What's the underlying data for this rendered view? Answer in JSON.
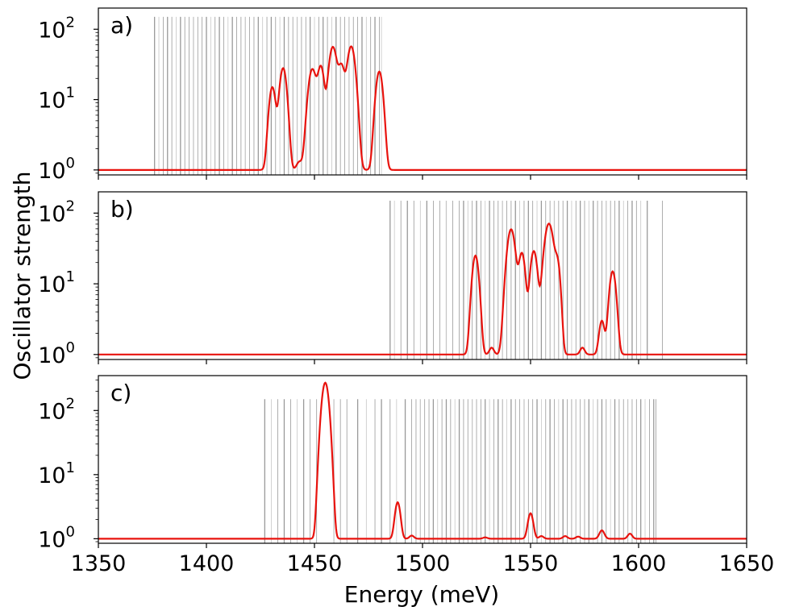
{
  "chart_data": {
    "type": "line",
    "xlabel": "Energy (meV)",
    "ylabel": "Oscillator strength",
    "xlim": [
      1350,
      1650
    ],
    "x_ticks": [
      1350,
      1400,
      1450,
      1500,
      1550,
      1600,
      1650
    ],
    "y_scale": "log",
    "y_ticks": [
      {
        "base": "10",
        "exp": "0"
      },
      {
        "base": "10",
        "exp": "1"
      },
      {
        "base": "10",
        "exp": "2"
      }
    ],
    "colors": {
      "curve": "#e8130e",
      "sticks": "#808080",
      "axes": "#000000"
    },
    "grid": false,
    "panels": [
      {
        "label": "a)",
        "ylim": [
          0.85,
          200
        ],
        "baseline": 1,
        "stick_range": [
          1376,
          1481
        ],
        "sticks": [
          1376,
          1378,
          1380,
          1382,
          1384,
          1386,
          1388,
          1390,
          1392,
          1394,
          1396,
          1398,
          1400,
          1402,
          1404,
          1406,
          1408,
          1410,
          1412,
          1414,
          1416,
          1418,
          1420,
          1422,
          1424,
          1426,
          1428,
          1430,
          1432,
          1434,
          1436,
          1438,
          1440,
          1442,
          1444,
          1446,
          1448,
          1450,
          1452,
          1454,
          1456,
          1458,
          1460,
          1462,
          1464,
          1466,
          1468,
          1470,
          1472,
          1474,
          1476,
          1478,
          1480,
          1481
        ],
        "peaks": [
          {
            "center": 1430.5,
            "height": 14,
            "width": 1.3
          },
          {
            "center": 1435.5,
            "height": 27,
            "width": 1.4
          },
          {
            "center": 1443,
            "height": 0.3,
            "width": 1.2
          },
          {
            "center": 1449,
            "height": 26,
            "width": 1.6
          },
          {
            "center": 1453,
            "height": 28,
            "width": 1.3
          },
          {
            "center": 1458.5,
            "height": 55,
            "width": 1.6
          },
          {
            "center": 1462.5,
            "height": 28,
            "width": 1.3
          },
          {
            "center": 1467,
            "height": 56,
            "width": 1.6
          },
          {
            "center": 1480,
            "height": 24,
            "width": 1.4
          }
        ]
      },
      {
        "label": "b)",
        "ylim": [
          0.85,
          200
        ],
        "baseline": 1,
        "stick_range": [
          1485,
          1611
        ],
        "sticks": [
          1485,
          1487,
          1490,
          1493,
          1496,
          1499,
          1502,
          1505,
          1508,
          1511,
          1514,
          1517,
          1519,
          1521,
          1523,
          1525,
          1527,
          1529,
          1531,
          1533,
          1535,
          1537,
          1539,
          1541,
          1543,
          1545,
          1547,
          1549,
          1551,
          1553,
          1555,
          1557,
          1559,
          1561,
          1563,
          1565,
          1567,
          1569,
          1571,
          1573,
          1575,
          1577,
          1579,
          1581,
          1583,
          1585,
          1587,
          1589,
          1591,
          1593,
          1595,
          1597,
          1599,
          1601,
          1604,
          1611
        ],
        "peaks": [
          {
            "center": 1524.5,
            "height": 24,
            "width": 1.3
          },
          {
            "center": 1532,
            "height": 0.25,
            "width": 1.0
          },
          {
            "center": 1541,
            "height": 58,
            "width": 1.6
          },
          {
            "center": 1546,
            "height": 26,
            "width": 1.3
          },
          {
            "center": 1551.5,
            "height": 28,
            "width": 1.4
          },
          {
            "center": 1558.5,
            "height": 70,
            "width": 1.8
          },
          {
            "center": 1562.5,
            "height": 17,
            "width": 1.1
          },
          {
            "center": 1574,
            "height": 0.25,
            "width": 1.0
          },
          {
            "center": 1583,
            "height": 2.0,
            "width": 1.1
          },
          {
            "center": 1588,
            "height": 14,
            "width": 1.3
          }
        ]
      },
      {
        "label": "c)",
        "ylim": [
          0.85,
          350
        ],
        "baseline": 1,
        "stick_range": [
          1427,
          1608
        ],
        "sticks": [
          1427,
          1430,
          1433,
          1436,
          1439,
          1442,
          1445,
          1448,
          1451,
          1459,
          1462,
          1465,
          1470,
          1474,
          1478,
          1481,
          1485,
          1488,
          1492,
          1495,
          1497,
          1499,
          1501,
          1503,
          1505,
          1507,
          1509,
          1511,
          1513,
          1515,
          1517,
          1519,
          1521,
          1523,
          1525,
          1527,
          1529,
          1531,
          1533,
          1535,
          1537,
          1539,
          1541,
          1543,
          1545,
          1547,
          1549,
          1551,
          1553,
          1555,
          1557,
          1559,
          1561,
          1563,
          1565,
          1567,
          1569,
          1571,
          1573,
          1575,
          1577,
          1579,
          1581,
          1583,
          1585,
          1587,
          1589,
          1591,
          1593,
          1595,
          1597,
          1599,
          1601,
          1603,
          1605,
          1607,
          1608
        ],
        "peaks": [
          {
            "center": 1455,
            "height": 270,
            "width": 1.4
          },
          {
            "center": 1488.5,
            "height": 2.7,
            "width": 1.1
          },
          {
            "center": 1495,
            "height": 0.12,
            "width": 1.0
          },
          {
            "center": 1529,
            "height": 0.05,
            "width": 1.0
          },
          {
            "center": 1550,
            "height": 1.5,
            "width": 1.1
          },
          {
            "center": 1555,
            "height": 0.1,
            "width": 1.0
          },
          {
            "center": 1566,
            "height": 0.1,
            "width": 1.0
          },
          {
            "center": 1572,
            "height": 0.08,
            "width": 1.0
          },
          {
            "center": 1583,
            "height": 0.35,
            "width": 1.1
          },
          {
            "center": 1596,
            "height": 0.2,
            "width": 1.0
          }
        ]
      }
    ]
  }
}
